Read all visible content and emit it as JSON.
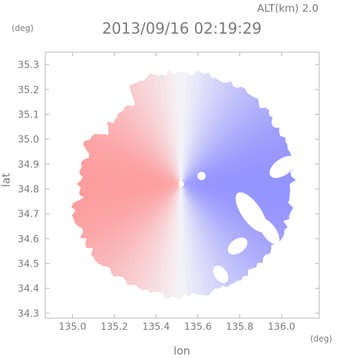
{
  "chart_data": {
    "type": "heatmap",
    "title": "2013/09/16 02:19:29",
    "subtitle": "ALT(km) 2.0",
    "xlabel": "lon",
    "ylabel": "lat",
    "xunit": "(deg)",
    "yunit": "(deg)",
    "xlim": [
      134.87,
      136.18
    ],
    "ylim": [
      34.28,
      35.35
    ],
    "xticks": [
      "135.0",
      "135.2",
      "135.4",
      "135.6",
      "135.8",
      "136.0"
    ],
    "yticks": [
      "34.3",
      "34.4",
      "34.5",
      "34.6",
      "34.7",
      "34.8",
      "34.9",
      "35.0",
      "35.1",
      "35.2",
      "35.3"
    ],
    "radar_center": {
      "lon": 135.52,
      "lat": 34.82
    },
    "coverage_radius_deg": 0.54,
    "colors": {
      "negative": "#ff7b7b",
      "neutral": "#f4f4f8",
      "positive": "#6e6eff",
      "frame": "#b0b0b0",
      "text": "#7a7a7a"
    },
    "grid": false,
    "description_values": {
      "west_side": "positive-red doppler values",
      "east_side": "blue doppler values"
    }
  }
}
